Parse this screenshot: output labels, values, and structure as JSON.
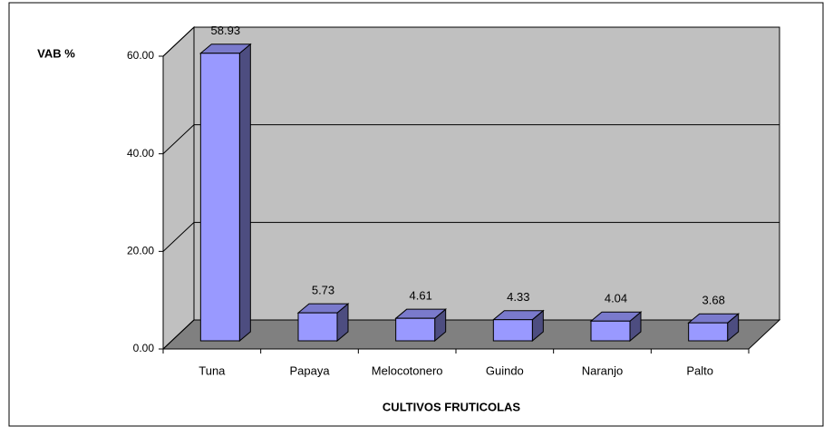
{
  "chart_data": {
    "type": "bar3d",
    "y_axis_label": "VAB %",
    "x_axis_label": "CULTIVOS FRUTICOLAS",
    "categories": [
      "Tuna",
      "Papaya",
      "Melocotonero",
      "Guindo",
      "Naranjo",
      "Palto"
    ],
    "values": [
      58.93,
      5.73,
      4.61,
      4.33,
      4.04,
      3.68
    ],
    "color": "#9999ff",
    "ylim": [
      0,
      60
    ],
    "yticks": [
      {
        "value": 0,
        "label": "0.00"
      },
      {
        "value": 20,
        "label": "20.00"
      },
      {
        "value": 40,
        "label": "40.00"
      },
      {
        "value": 60,
        "label": "60.00"
      }
    ],
    "grid": true
  }
}
